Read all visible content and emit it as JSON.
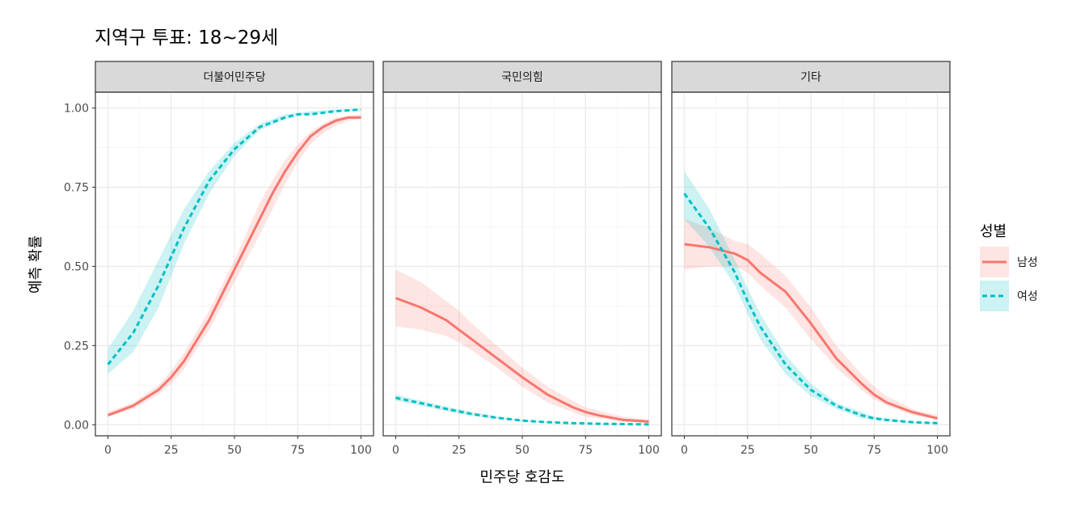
{
  "title": "지역구 투표: 18~29세",
  "chart_data": {
    "type": "line",
    "title": "지역구 투표: 18~29세",
    "xlabel": "민주당 호감도",
    "ylabel": "예측 확률",
    "xlim": [
      0,
      100
    ],
    "ylim": [
      0,
      1
    ],
    "x_ticks": [
      "0",
      "25",
      "50",
      "75",
      "100"
    ],
    "y_ticks": [
      "0.00",
      "0.25",
      "0.50",
      "0.75",
      "1.00"
    ],
    "x_tick_values": [
      0,
      25,
      50,
      75,
      100
    ],
    "y_tick_values": [
      0,
      0.25,
      0.5,
      0.75,
      1.0
    ],
    "grid": true,
    "legend": {
      "title": "성별",
      "position": "right",
      "entries": [
        {
          "label": "남성",
          "color": "#F8766D",
          "linetype": "solid"
        },
        {
          "label": "여성",
          "color": "#00BFC4",
          "linetype": "dashed"
        }
      ]
    },
    "facets": [
      {
        "label": "더불어민주당",
        "series": [
          {
            "name": "남성",
            "x": [
              0,
              10,
              20,
              25,
              30,
              40,
              50,
              60,
              65,
              70,
              75,
              80,
              85,
              90,
              95,
              100
            ],
            "y": [
              0.03,
              0.06,
              0.11,
              0.15,
              0.2,
              0.33,
              0.49,
              0.65,
              0.73,
              0.8,
              0.86,
              0.91,
              0.94,
              0.96,
              0.97,
              0.97
            ],
            "lower": [
              0.025,
              0.05,
              0.095,
              0.13,
              0.175,
              0.3,
              0.45,
              0.6,
              0.68,
              0.76,
              0.83,
              0.885,
              0.92,
              0.945,
              0.96,
              0.965
            ],
            "upper": [
              0.04,
              0.07,
              0.125,
              0.17,
              0.225,
              0.36,
              0.52,
              0.7,
              0.77,
              0.835,
              0.885,
              0.925,
              0.95,
              0.97,
              0.975,
              0.98
            ]
          },
          {
            "name": "여성",
            "x": [
              0,
              10,
              20,
              25,
              30,
              40,
              50,
              60,
              70,
              75,
              80,
              90,
              100
            ],
            "y": [
              0.19,
              0.29,
              0.44,
              0.53,
              0.62,
              0.77,
              0.87,
              0.94,
              0.97,
              0.98,
              0.98,
              0.99,
              0.995
            ],
            "lower": [
              0.16,
              0.23,
              0.37,
              0.47,
              0.57,
              0.73,
              0.85,
              0.93,
              0.965,
              0.975,
              0.98,
              0.987,
              0.993
            ],
            "upper": [
              0.24,
              0.36,
              0.52,
              0.6,
              0.68,
              0.8,
              0.89,
              0.95,
              0.98,
              0.985,
              0.99,
              0.995,
              0.998
            ]
          }
        ]
      },
      {
        "label": "국민의힘",
        "series": [
          {
            "name": "남성",
            "x": [
              0,
              10,
              20,
              25,
              30,
              40,
              50,
              60,
              70,
              75,
              80,
              90,
              100
            ],
            "y": [
              0.4,
              0.37,
              0.33,
              0.3,
              0.27,
              0.21,
              0.15,
              0.095,
              0.055,
              0.04,
              0.03,
              0.015,
              0.01
            ],
            "lower": [
              0.31,
              0.3,
              0.28,
              0.26,
              0.235,
              0.18,
              0.12,
              0.07,
              0.04,
              0.025,
              0.02,
              0.01,
              0.005
            ],
            "upper": [
              0.49,
              0.45,
              0.39,
              0.36,
              0.32,
              0.25,
              0.18,
              0.12,
              0.075,
              0.055,
              0.045,
              0.025,
              0.015
            ]
          },
          {
            "name": "여성",
            "x": [
              0,
              10,
              20,
              25,
              30,
              40,
              50,
              60,
              70,
              80,
              90,
              100
            ],
            "y": [
              0.085,
              0.068,
              0.05,
              0.042,
              0.034,
              0.022,
              0.013,
              0.008,
              0.005,
              0.003,
              0.002,
              0.001
            ],
            "lower": [
              0.075,
              0.06,
              0.043,
              0.035,
              0.028,
              0.018,
              0.01,
              0.006,
              0.004,
              0.002,
              0.001,
              0.0005
            ],
            "upper": [
              0.095,
              0.076,
              0.057,
              0.049,
              0.04,
              0.026,
              0.016,
              0.01,
              0.006,
              0.004,
              0.003,
              0.002
            ]
          }
        ]
      },
      {
        "label": "기타",
        "series": [
          {
            "name": "남성",
            "x": [
              0,
              10,
              20,
              25,
              30,
              40,
              50,
              60,
              70,
              75,
              80,
              90,
              100
            ],
            "y": [
              0.57,
              0.56,
              0.54,
              0.52,
              0.48,
              0.42,
              0.32,
              0.21,
              0.13,
              0.095,
              0.07,
              0.04,
              0.02
            ],
            "lower": [
              0.49,
              0.5,
              0.5,
              0.48,
              0.44,
              0.37,
              0.27,
              0.18,
              0.11,
              0.08,
              0.06,
              0.03,
              0.015
            ],
            "upper": [
              0.65,
              0.62,
              0.58,
              0.57,
              0.54,
              0.47,
              0.37,
              0.25,
              0.16,
              0.12,
              0.09,
              0.05,
              0.03
            ]
          },
          {
            "name": "여성",
            "x": [
              0,
              10,
              20,
              25,
              30,
              40,
              50,
              60,
              70,
              75,
              80,
              90,
              100
            ],
            "y": [
              0.73,
              0.62,
              0.48,
              0.39,
              0.31,
              0.19,
              0.11,
              0.06,
              0.03,
              0.02,
              0.015,
              0.008,
              0.005
            ],
            "lower": [
              0.65,
              0.56,
              0.44,
              0.35,
              0.27,
              0.16,
              0.09,
              0.05,
              0.02,
              0.015,
              0.01,
              0.005,
              0.003
            ],
            "upper": [
              0.8,
              0.68,
              0.52,
              0.43,
              0.35,
              0.22,
              0.13,
              0.07,
              0.04,
              0.025,
              0.02,
              0.01,
              0.007
            ]
          }
        ]
      }
    ]
  }
}
